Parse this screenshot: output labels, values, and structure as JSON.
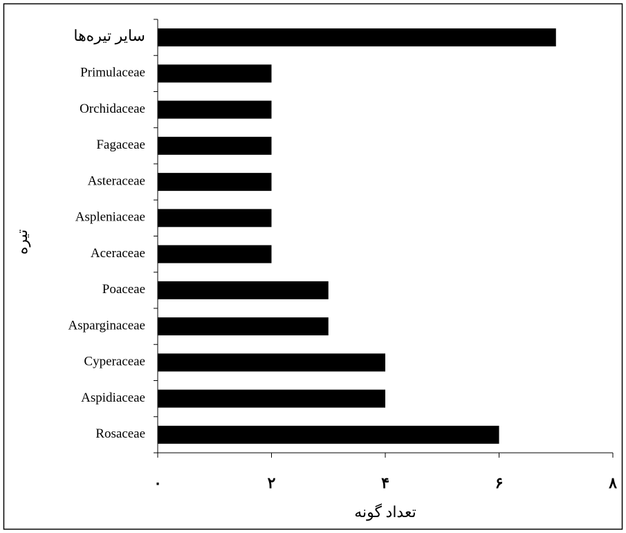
{
  "chart_data": {
    "type": "barh",
    "x_label": "تعداد گونه",
    "y_label": "تیره",
    "categories": [
      "سایر تیره‌ها",
      "Primulaceae",
      "Orchidaceae",
      "Fagaceae",
      "Asteraceae",
      "Aspleniaceae",
      "Aceraceae",
      "Poaceae",
      "Asparginaceae",
      "Cyperaceae",
      "Aspidiaceae",
      "Rosaceae"
    ],
    "values": [
      7,
      2,
      2,
      2,
      2,
      2,
      2,
      3,
      3,
      4,
      4,
      6
    ],
    "color": "#000000",
    "xlim": [
      0,
      8
    ],
    "xticks": [
      {
        "value": 0,
        "label": "۰"
      },
      {
        "value": 2,
        "label": "۲"
      },
      {
        "value": 4,
        "label": "۴"
      },
      {
        "value": 6,
        "label": "۶"
      },
      {
        "value": 8,
        "label": "۸"
      }
    ],
    "grid": false
  }
}
